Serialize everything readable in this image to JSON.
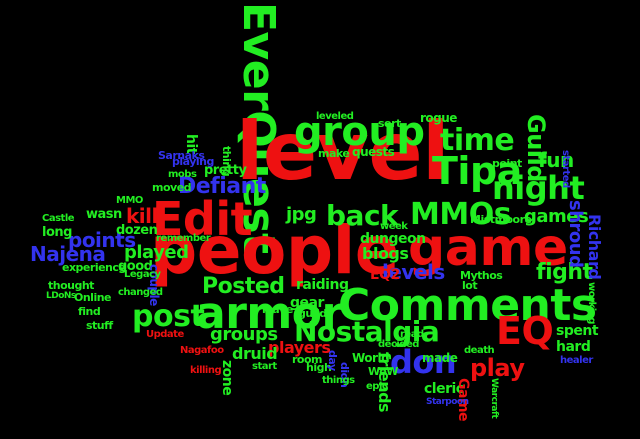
{
  "words": [
    {
      "text": "EverQuest",
      "color": "#22ee22"
    },
    {
      "text": "level",
      "color": "#ee1111"
    },
    {
      "text": "people",
      "color": "#ee1111"
    },
    {
      "text": "Edit",
      "color": "#ee1111"
    },
    {
      "text": "game",
      "color": "#ee1111"
    },
    {
      "text": "armor",
      "color": "#22ee22"
    },
    {
      "text": "Comments",
      "color": "#22ee22"
    },
    {
      "text": "group",
      "color": "#22ee22"
    },
    {
      "text": "Tipa",
      "color": "#22ee22"
    },
    {
      "text": "time",
      "color": "#22ee22"
    },
    {
      "text": "night",
      "color": "#22ee22"
    },
    {
      "text": "MMOs",
      "color": "#22ee22"
    },
    {
      "text": "back",
      "color": "#22ee22"
    },
    {
      "text": "Nostalgia",
      "color": "#22ee22"
    },
    {
      "text": "EQ",
      "color": "#ee1111"
    },
    {
      "text": "don",
      "color": "#3333ee"
    },
    {
      "text": "post",
      "color": "#22ee22"
    },
    {
      "text": "Posted",
      "color": "#22ee22"
    },
    {
      "text": "groups",
      "color": "#22ee22"
    },
    {
      "text": "play",
      "color": "#ee1111"
    },
    {
      "text": "Guild",
      "color": "#22ee22"
    },
    {
      "text": "fun",
      "color": "#22ee22"
    },
    {
      "text": "Defiant",
      "color": "#3333ee"
    },
    {
      "text": "jpg",
      "color": "#22ee22"
    },
    {
      "text": "points",
      "color": "#3333ee"
    },
    {
      "text": "Najena",
      "color": "#3333ee"
    },
    {
      "text": "levels",
      "color": "#3333ee"
    },
    {
      "text": "blogs",
      "color": "#22ee22"
    },
    {
      "text": "dungeon",
      "color": "#22ee22"
    },
    {
      "text": "EQ2",
      "color": "#ee1111"
    },
    {
      "text": "fight",
      "color": "#22ee22"
    },
    {
      "text": "games",
      "color": "#22ee22"
    },
    {
      "text": "shroud",
      "color": "#3333ee"
    },
    {
      "text": "Richard",
      "color": "#3333ee"
    },
    {
      "text": "kill",
      "color": "#ee1111"
    },
    {
      "text": "played",
      "color": "#22ee22"
    },
    {
      "text": "raiding",
      "color": "#22ee22"
    },
    {
      "text": "gear",
      "color": "#22ee22"
    },
    {
      "text": "players",
      "color": "#ee1111"
    },
    {
      "text": "druid",
      "color": "#22ee22"
    },
    {
      "text": "zone",
      "color": "#22ee22"
    },
    {
      "text": "friends",
      "color": "#22ee22"
    },
    {
      "text": "cleric",
      "color": "#22ee22"
    },
    {
      "text": "Game",
      "color": "#ee1111"
    },
    {
      "text": "spent",
      "color": "#22ee22"
    },
    {
      "text": "hard",
      "color": "#22ee22"
    },
    {
      "text": "World",
      "color": "#22ee22"
    },
    {
      "text": "made",
      "color": "#22ee22"
    },
    {
      "text": "quests",
      "color": "#22ee22"
    },
    {
      "text": "hit",
      "color": "#22ee22"
    },
    {
      "text": "pretty",
      "color": "#22ee22"
    },
    {
      "text": "moved",
      "color": "#22ee22"
    },
    {
      "text": "dozen",
      "color": "#22ee22"
    },
    {
      "text": "wasn",
      "color": "#22ee22"
    },
    {
      "text": "long",
      "color": "#22ee22"
    },
    {
      "text": "good",
      "color": "#22ee22"
    },
    {
      "text": "experience",
      "color": "#22ee22"
    },
    {
      "text": "thought",
      "color": "#22ee22"
    },
    {
      "text": "Online",
      "color": "#22ee22"
    },
    {
      "text": "find",
      "color": "#22ee22"
    },
    {
      "text": "stuff",
      "color": "#22ee22"
    },
    {
      "text": "Sarnaks",
      "color": "#3333ee"
    },
    {
      "text": "Mistmoore",
      "color": "#22ee22"
    },
    {
      "text": "guild",
      "color": "#22ee22"
    },
    {
      "text": "leave",
      "color": "#22ee22"
    },
    {
      "text": "couple",
      "color": "#3333ee"
    },
    {
      "text": "Mythos",
      "color": "#22ee22"
    },
    {
      "text": "lot",
      "color": "#22ee22"
    },
    {
      "text": "rogue",
      "color": "#22ee22"
    },
    {
      "text": "sort",
      "color": "#22ee22"
    },
    {
      "text": "leveled",
      "color": "#22ee22"
    },
    {
      "text": "point",
      "color": "#22ee22"
    },
    {
      "text": "make",
      "color": "#22ee22"
    },
    {
      "text": "playing",
      "color": "#3333ee"
    },
    {
      "text": "thing",
      "color": "#22ee22"
    },
    {
      "text": "mobs",
      "color": "#22ee22"
    },
    {
      "text": "MMO",
      "color": "#22ee22"
    },
    {
      "text": "week",
      "color": "#22ee22"
    },
    {
      "text": "remember",
      "color": "#22ee22"
    },
    {
      "text": "Castle",
      "color": "#22ee22"
    },
    {
      "text": "changed",
      "color": "#22ee22"
    },
    {
      "text": "Legacy",
      "color": "#22ee22"
    },
    {
      "text": "Update",
      "color": "#ee1111"
    },
    {
      "text": "Nagafoo",
      "color": "#ee1111"
    },
    {
      "text": "killing",
      "color": "#ee1111"
    },
    {
      "text": "room",
      "color": "#22ee22"
    },
    {
      "text": "high",
      "color": "#22ee22"
    },
    {
      "text": "day",
      "color": "#3333ee"
    },
    {
      "text": "start",
      "color": "#22ee22"
    },
    {
      "text": "didn",
      "color": "#3333ee"
    },
    {
      "text": "things",
      "color": "#22ee22"
    },
    {
      "text": "WoW",
      "color": "#22ee22"
    },
    {
      "text": "epic",
      "color": "#22ee22"
    },
    {
      "text": "healer",
      "color": "#3333ee"
    },
    {
      "text": "working",
      "color": "#22ee22"
    },
    {
      "text": "started",
      "color": "#3333ee"
    },
    {
      "text": "death",
      "color": "#22ee22"
    },
    {
      "text": "read",
      "color": "#22ee22"
    },
    {
      "text": "decided",
      "color": "#22ee22"
    },
    {
      "text": "LDoNs",
      "color": "#22ee22"
    },
    {
      "text": "Warcraft",
      "color": "#22ee22"
    },
    {
      "text": "Starpoon",
      "color": "#3333ee"
    }
  ]
}
